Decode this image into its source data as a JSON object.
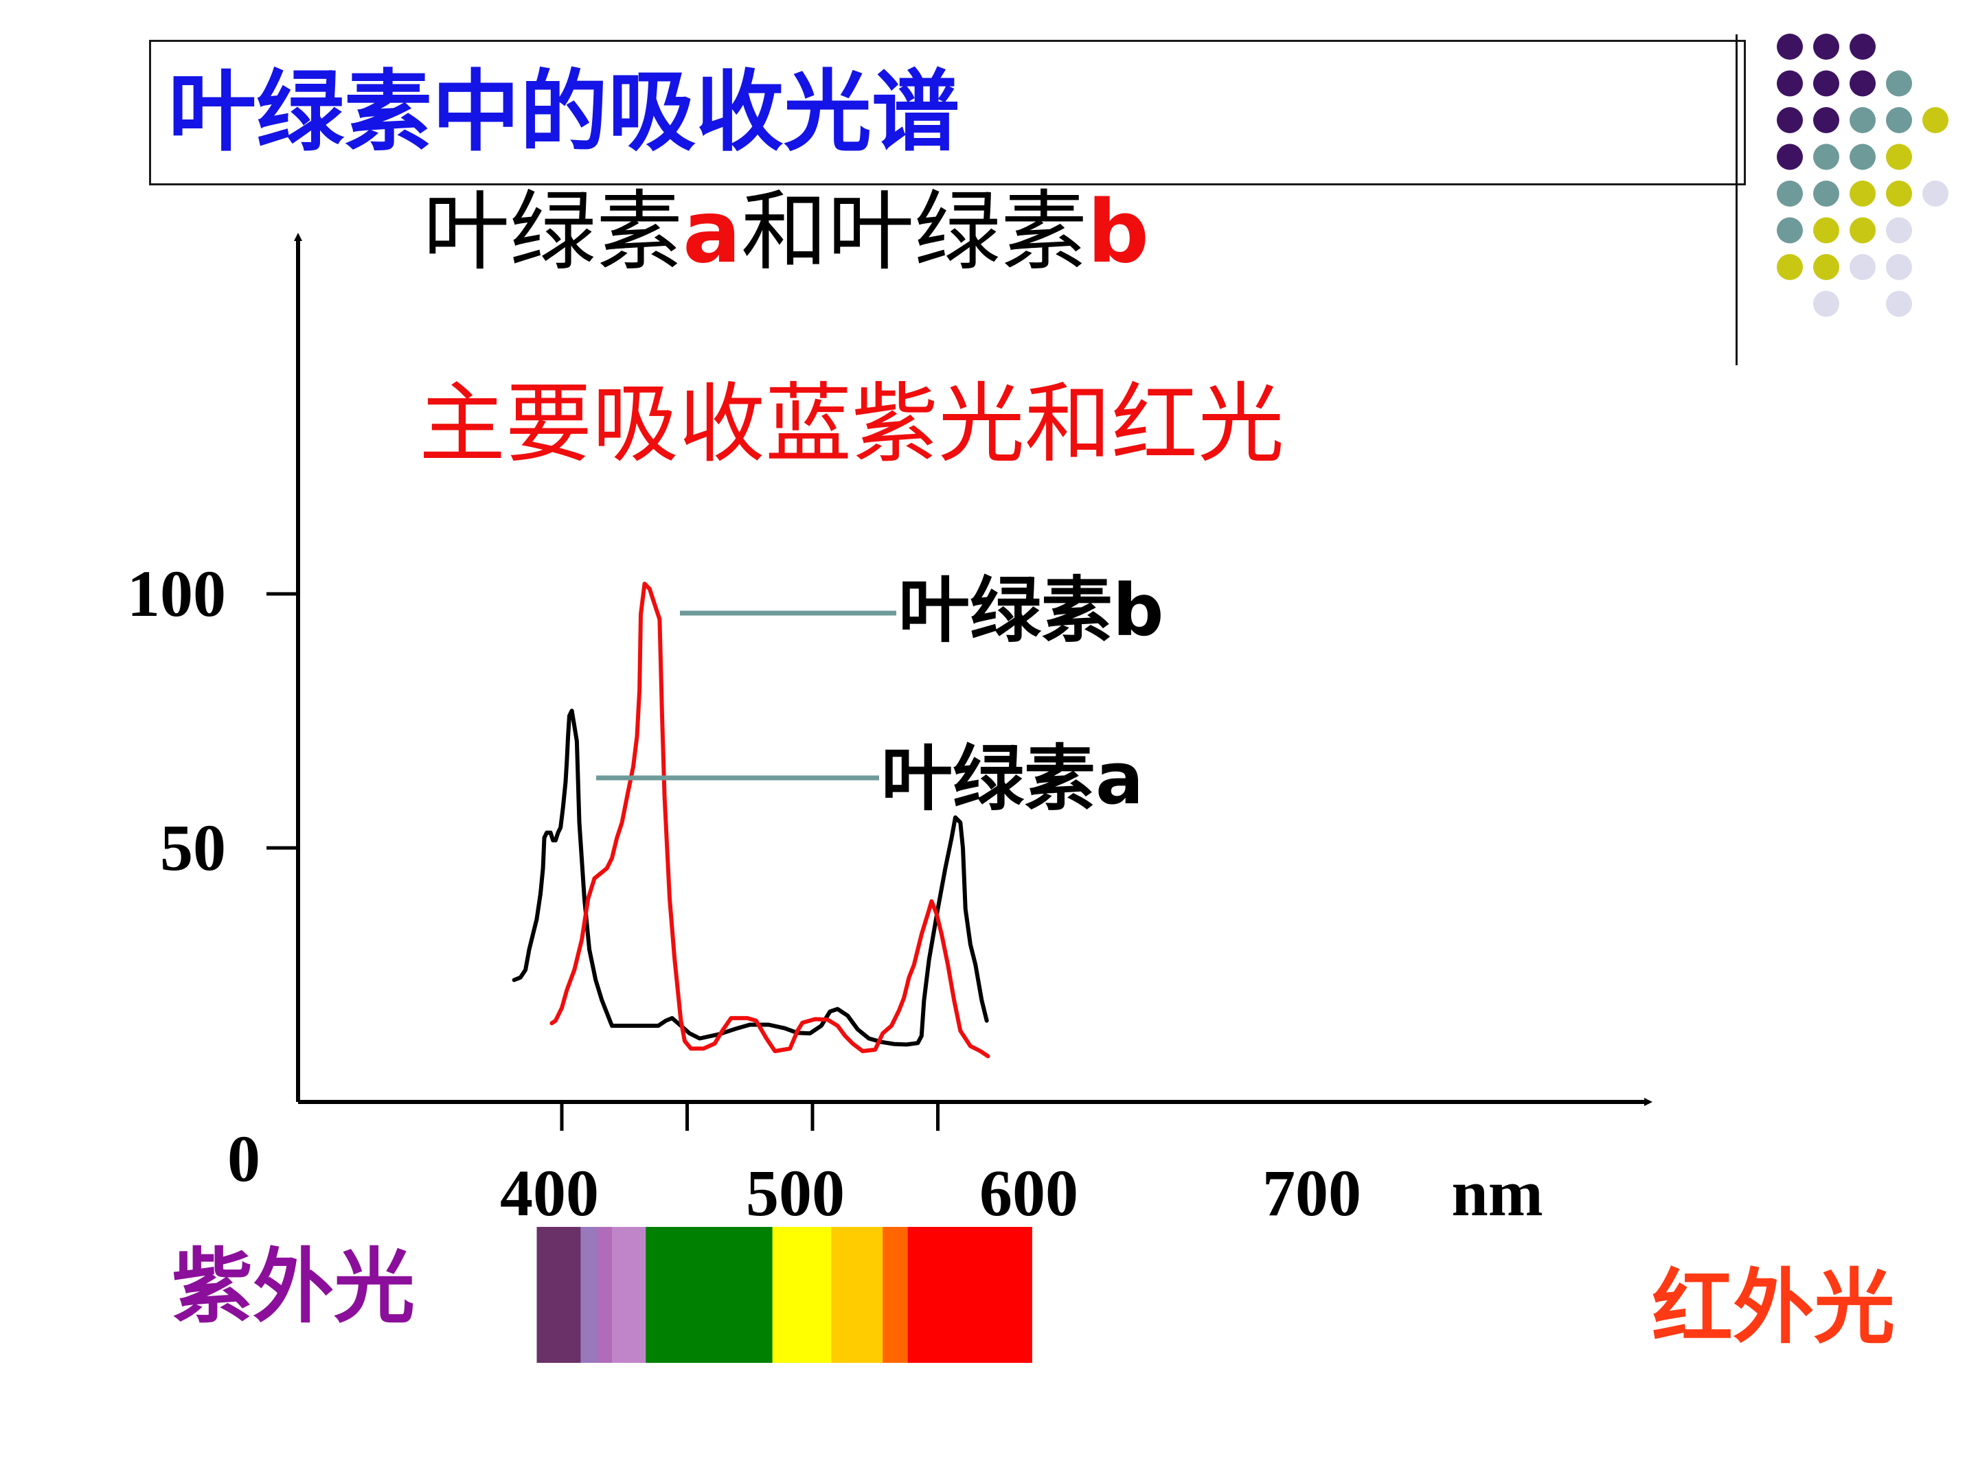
{
  "slide": {
    "title": "叶绿素中的吸收光谱",
    "subtitle_part1": "叶绿素",
    "subtitle_a": "a",
    "subtitle_and": "和叶绿素",
    "subtitle_b": "b",
    "note": "主要吸收蓝紫光和红光",
    "uv_label": "紫外光",
    "ir_label": "红外光",
    "unit_label": "nm",
    "origin_label": "0"
  },
  "colors": {
    "title": "#1414e6",
    "accent_red": "#f00d0d",
    "uv_label": "#8b0f9a",
    "ir_label": "#ff3a14",
    "chlorophyll_a_line": "#000000",
    "chlorophyll_b_line": "#f00d0d",
    "callout_line": "#6f9a9a"
  },
  "decor": {
    "dot_colors": [
      "#3d1361",
      "#6f9a9a",
      "#c8c814",
      "#dcdcec"
    ]
  },
  "spectrum": {
    "bands": [
      {
        "from": 380,
        "to": 415,
        "color": "#6a3068"
      },
      {
        "from": 415,
        "to": 429,
        "color": "#9a78bc"
      },
      {
        "from": 429,
        "to": 440,
        "color": "#b06cb8"
      },
      {
        "from": 440,
        "to": 467,
        "color": "#c084c8"
      },
      {
        "from": 467,
        "to": 568,
        "color": "#008000"
      },
      {
        "from": 568,
        "to": 615,
        "color": "#ffff00"
      },
      {
        "from": 615,
        "to": 656,
        "color": "#ffcc00"
      },
      {
        "from": 656,
        "to": 676,
        "color": "#ff6600"
      },
      {
        "from": 676,
        "to": 775,
        "color": "#ff0000"
      }
    ]
  },
  "chart_data": {
    "type": "line",
    "title": "",
    "xlabel": "nm",
    "ylabel": "",
    "x_ticks": [
      400,
      500,
      600,
      700
    ],
    "y_ticks": [
      50,
      100
    ],
    "x_range": [
      300,
      850
    ],
    "ylim": [
      0,
      100
    ],
    "grid": false,
    "series": [
      {
        "name": "叶绿素a",
        "color": "#000000",
        "points": [
          [
            362,
            24
          ],
          [
            367,
            24.5
          ],
          [
            371,
            26
          ],
          [
            374,
            30
          ],
          [
            377,
            33
          ],
          [
            380,
            36
          ],
          [
            383,
            41
          ],
          [
            385,
            46
          ],
          [
            386,
            52
          ],
          [
            388,
            53
          ],
          [
            391,
            53
          ],
          [
            393,
            51.5
          ],
          [
            395,
            51.5
          ],
          [
            397,
            53
          ],
          [
            399,
            54
          ],
          [
            401,
            58
          ],
          [
            403,
            63
          ],
          [
            404,
            67
          ],
          [
            405,
            72
          ],
          [
            406,
            76
          ],
          [
            408,
            77
          ],
          [
            410,
            74
          ],
          [
            412,
            71
          ],
          [
            414,
            55
          ],
          [
            418,
            40
          ],
          [
            422,
            30
          ],
          [
            427,
            24
          ],
          [
            432,
            20
          ],
          [
            440,
            15
          ],
          [
            460,
            15
          ],
          [
            477,
            15
          ],
          [
            483,
            16
          ],
          [
            488,
            16.5
          ],
          [
            495,
            15
          ],
          [
            502,
            13.5
          ],
          [
            510,
            12.5
          ],
          [
            525,
            13.3
          ],
          [
            540,
            14.5
          ],
          [
            550,
            15.2
          ],
          [
            565,
            15.2
          ],
          [
            578,
            14.5
          ],
          [
            588,
            13.6
          ],
          [
            598,
            13.5
          ],
          [
            607,
            15
          ],
          [
            614,
            17.8
          ],
          [
            620,
            18.3
          ],
          [
            628,
            17
          ],
          [
            636,
            14.3
          ],
          [
            645,
            12.5
          ],
          [
            655,
            11.8
          ],
          [
            665,
            11.4
          ],
          [
            675,
            11.3
          ],
          [
            684,
            11.6
          ],
          [
            687,
            13
          ],
          [
            689,
            20
          ],
          [
            693,
            28
          ],
          [
            700,
            38
          ],
          [
            706,
            46
          ],
          [
            711,
            52
          ],
          [
            714,
            56
          ],
          [
            718,
            55
          ],
          [
            720,
            50
          ],
          [
            722,
            38
          ],
          [
            726,
            31
          ],
          [
            730,
            27
          ],
          [
            735,
            20
          ],
          [
            739,
            16
          ]
        ]
      },
      {
        "name": "叶绿素b",
        "color": "#f00d0d",
        "points": [
          [
            392,
            15.5
          ],
          [
            395,
            16
          ],
          [
            400,
            18.5
          ],
          [
            404,
            22
          ],
          [
            410,
            26
          ],
          [
            416,
            32
          ],
          [
            421,
            40
          ],
          [
            426,
            44
          ],
          [
            431,
            45
          ],
          [
            436,
            46
          ],
          [
            440,
            48
          ],
          [
            444,
            52
          ],
          [
            448,
            55
          ],
          [
            452,
            60
          ],
          [
            457,
            66
          ],
          [
            460,
            72
          ],
          [
            462,
            81
          ],
          [
            463,
            96
          ],
          [
            466,
            102
          ],
          [
            470,
            101
          ],
          [
            474,
            98
          ],
          [
            478,
            95
          ],
          [
            480,
            76
          ],
          [
            482,
            60
          ],
          [
            486,
            40
          ],
          [
            490,
            28
          ],
          [
            495,
            16
          ],
          [
            498,
            12
          ],
          [
            503,
            10.5
          ],
          [
            513,
            10.5
          ],
          [
            522,
            11.5
          ],
          [
            528,
            14
          ],
          [
            535,
            16.5
          ],
          [
            548,
            16.5
          ],
          [
            555,
            16
          ],
          [
            563,
            12.6
          ],
          [
            570,
            10
          ],
          [
            582,
            10.5
          ],
          [
            588,
            14
          ],
          [
            592,
            15.6
          ],
          [
            602,
            16.3
          ],
          [
            612,
            16.2
          ],
          [
            620,
            15
          ],
          [
            626,
            13
          ],
          [
            632,
            11.5
          ],
          [
            640,
            10
          ],
          [
            650,
            10.3
          ],
          [
            656,
            13.5
          ],
          [
            663,
            15
          ],
          [
            669,
            18
          ],
          [
            673,
            20.5
          ],
          [
            677,
            24.5
          ],
          [
            681,
            27
          ],
          [
            687,
            33
          ],
          [
            692,
            37
          ],
          [
            695,
            39.5
          ],
          [
            699,
            37
          ],
          [
            703,
            33
          ],
          [
            708,
            27
          ],
          [
            713,
            20
          ],
          [
            718,
            14
          ],
          [
            726,
            11
          ],
          [
            734,
            10
          ],
          [
            740,
            9
          ]
        ]
      }
    ],
    "annotations": [
      {
        "label": "叶绿素b",
        "series": "叶绿素b"
      },
      {
        "label": "叶绿素a",
        "series": "叶绿素a"
      }
    ]
  }
}
